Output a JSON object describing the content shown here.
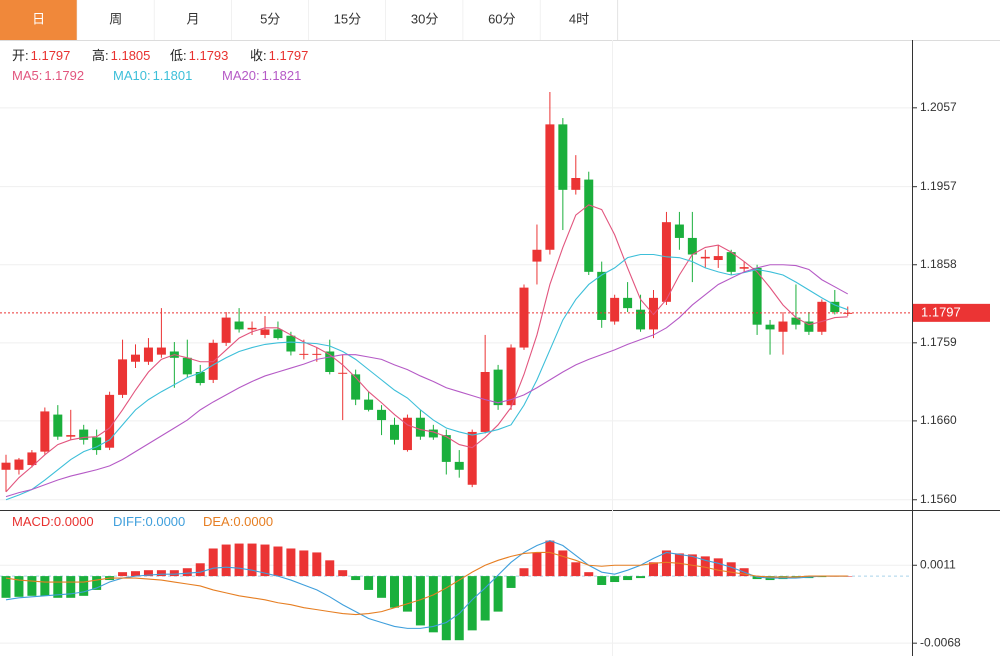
{
  "tabs": {
    "items": [
      "日",
      "周",
      "月",
      "5分",
      "15分",
      "30分",
      "60分",
      "4时"
    ],
    "active": 0
  },
  "chart_data": [
    {
      "type": "candlestick",
      "ohlc_legend": [
        {
          "label": "开:",
          "value": "1.1797"
        },
        {
          "label": "高:",
          "value": "1.1805"
        },
        {
          "label": "低:",
          "value": "1.1793"
        },
        {
          "label": "收:",
          "value": "1.1797"
        }
      ],
      "up_color": "#eb3434",
      "down_color": "#1aaf3c",
      "ylim": [
        1.1547,
        1.2143
      ],
      "yticks": [
        1.2057,
        1.1957,
        1.1858,
        1.1759,
        {
          "value": 1.166,
          "label": "1.1660"
        },
        {
          "value": 1.156,
          "label": "1.1560"
        }
      ],
      "last_price": 1.1797,
      "open": [
        1.1598,
        1.1598,
        1.1604,
        1.1621,
        1.1668,
        1.164,
        1.1649,
        1.1639,
        1.1626,
        1.1693,
        1.1735,
        1.1735,
        1.1744,
        1.1748,
        1.174,
        1.1722,
        1.1712,
        1.1759,
        1.1786,
        1.1776,
        1.1769,
        1.1776,
        1.1768,
        1.1744,
        1.1744,
        1.1748,
        1.172,
        1.1719,
        1.1687,
        1.1674,
        1.1655,
        1.1623,
        1.1664,
        1.1649,
        1.1642,
        1.1608,
        1.1579,
        1.1646,
        1.1725,
        1.168,
        1.1753,
        1.1862,
        1.1877,
        1.2036,
        1.1953,
        1.1966,
        1.1849,
        1.1786,
        1.1816,
        1.1801,
        1.1776,
        1.1811,
        1.1909,
        1.1892,
        1.1866,
        1.1864,
        1.1874,
        1.1853,
        1.1854,
        1.1782,
        1.1773,
        1.1791,
        1.1786,
        1.1773,
        1.1811,
        1.1797
      ],
      "high": [
        1.1617,
        1.1613,
        1.1623,
        1.1677,
        1.168,
        1.1674,
        1.1655,
        1.1649,
        1.1697,
        1.1763,
        1.1757,
        1.1765,
        1.1803,
        1.176,
        1.1763,
        1.1731,
        1.1763,
        1.1798,
        1.1803,
        1.1786,
        1.1793,
        1.1786,
        1.1773,
        1.1763,
        1.1753,
        1.1763,
        1.1744,
        1.1725,
        1.1697,
        1.168,
        1.1664,
        1.1668,
        1.1674,
        1.1655,
        1.1649,
        1.1623,
        1.1649,
        1.1769,
        1.1731,
        1.1757,
        1.1833,
        1.1909,
        1.2077,
        1.2044,
        1.1997,
        1.1976,
        1.1862,
        1.182,
        1.1836,
        1.182,
        1.1826,
        1.1925,
        1.1925,
        1.1925,
        1.1877,
        1.1883,
        1.1877,
        1.1862,
        1.1858,
        1.1788,
        1.1798,
        1.1833,
        1.1798,
        1.1814,
        1.1826,
        1.1805
      ],
      "low": [
        1.157,
        1.1592,
        1.1601,
        1.1617,
        1.1636,
        1.1636,
        1.163,
        1.1617,
        1.1623,
        1.1689,
        1.1727,
        1.1731,
        1.174,
        1.1702,
        1.1715,
        1.1705,
        1.1708,
        1.1755,
        1.1772,
        1.1769,
        1.1765,
        1.1763,
        1.1743,
        1.1738,
        1.1735,
        1.1719,
        1.1661,
        1.168,
        1.1672,
        1.1642,
        1.163,
        1.1621,
        1.1636,
        1.1636,
        1.1592,
        1.1588,
        1.1576,
        1.1644,
        1.1674,
        1.1674,
        1.175,
        1.1833,
        1.1871,
        1.1902,
        1.1947,
        1.1845,
        1.1778,
        1.1782,
        1.1798,
        1.1773,
        1.1765,
        1.1807,
        1.1877,
        1.1836,
        1.1854,
        1.1854,
        1.1845,
        1.1849,
        1.1769,
        1.1744,
        1.1744,
        1.1776,
        1.1769,
        1.1769,
        1.1795,
        1.1793
      ],
      "close": [
        1.1607,
        1.1611,
        1.162,
        1.1672,
        1.164,
        1.1642,
        1.1636,
        1.1623,
        1.1693,
        1.1738,
        1.1744,
        1.1753,
        1.1753,
        1.174,
        1.1719,
        1.1708,
        1.1759,
        1.1791,
        1.1776,
        1.1778,
        1.1776,
        1.1765,
        1.1748,
        1.1745,
        1.1745,
        1.1722,
        1.1721,
        1.1687,
        1.1674,
        1.1661,
        1.1636,
        1.1664,
        1.164,
        1.1639,
        1.1608,
        1.1598,
        1.1646,
        1.1722,
        1.168,
        1.1753,
        1.1829,
        1.1877,
        1.2036,
        1.1953,
        1.1968,
        1.1849,
        1.1788,
        1.1816,
        1.1803,
        1.1776,
        1.1816,
        1.1912,
        1.1892,
        1.1871,
        1.1868,
        1.1869,
        1.1849,
        1.1855,
        1.1782,
        1.1776,
        1.1786,
        1.1782,
        1.1773,
        1.1811,
        1.1798,
        1.1797
      ],
      "series": [
        {
          "name": "MA5:",
          "last": "1.1792",
          "color": "#e2557e",
          "values": [
            1.157,
            1.1588,
            1.1602,
            1.1617,
            1.163,
            1.1636,
            1.1639,
            1.164,
            1.1651,
            1.1674,
            1.1699,
            1.1722,
            1.1738,
            1.1744,
            1.174,
            1.1735,
            1.1735,
            1.175,
            1.1765,
            1.1773,
            1.1778,
            1.1778,
            1.1769,
            1.176,
            1.1753,
            1.1744,
            1.1731,
            1.1715,
            1.1697,
            1.1683,
            1.1668,
            1.1655,
            1.1649,
            1.1646,
            1.164,
            1.163,
            1.1626,
            1.1639,
            1.1655,
            1.1677,
            1.1719,
            1.1769,
            1.1833,
            1.188,
            1.1921,
            1.1934,
            1.1928,
            1.1896,
            1.1854,
            1.1814,
            1.1795,
            1.1814,
            1.1845,
            1.1871,
            1.188,
            1.1883,
            1.1874,
            1.1862,
            1.1849,
            1.1829,
            1.1807,
            1.1791,
            1.1782,
            1.1786,
            1.1791,
            1.1792
          ]
        },
        {
          "name": "MA10:",
          "last": "1.1801",
          "color": "#3dbfd9",
          "values": [
            1.156,
            1.1566,
            1.1573,
            1.1585,
            1.1598,
            1.1611,
            1.1621,
            1.1627,
            1.1636,
            1.1655,
            1.1674,
            1.1687,
            1.1697,
            1.1706,
            1.1715,
            1.1721,
            1.1731,
            1.174,
            1.1748,
            1.1753,
            1.1757,
            1.1759,
            1.176,
            1.1759,
            1.1758,
            1.1755,
            1.1748,
            1.1738,
            1.1725,
            1.1712,
            1.1699,
            1.1689,
            1.1674,
            1.1661,
            1.1651,
            1.1646,
            1.1642,
            1.1645,
            1.1649,
            1.1655,
            1.168,
            1.1712,
            1.175,
            1.1788,
            1.1814,
            1.1833,
            1.1845,
            1.1854,
            1.1867,
            1.1871,
            1.1871,
            1.1868,
            1.1867,
            1.1862,
            1.1854,
            1.1849,
            1.1845,
            1.1848,
            1.1852,
            1.1849,
            1.1845,
            1.1836,
            1.1826,
            1.1816,
            1.1807,
            1.1801
          ]
        },
        {
          "name": "MA20:",
          "last": "1.1821",
          "color": "#b55ac6",
          "values": [
            1.1564,
            1.1569,
            1.1573,
            1.1579,
            1.1585,
            1.159,
            1.1594,
            1.1598,
            1.1603,
            1.1611,
            1.1621,
            1.1631,
            1.1641,
            1.1651,
            1.1661,
            1.1674,
            1.1684,
            1.1693,
            1.1702,
            1.171,
            1.1717,
            1.1722,
            1.1727,
            1.1732,
            1.1738,
            1.1741,
            1.1744,
            1.1744,
            1.1741,
            1.1738,
            1.1731,
            1.1725,
            1.1717,
            1.171,
            1.1702,
            1.1697,
            1.1692,
            1.1687,
            1.1683,
            1.1687,
            1.1693,
            1.1702,
            1.1712,
            1.1722,
            1.1731,
            1.1738,
            1.1744,
            1.175,
            1.1757,
            1.1763,
            1.1769,
            1.1778,
            1.1791,
            1.1807,
            1.182,
            1.1833,
            1.1841,
            1.1849,
            1.1854,
            1.1858,
            1.1858,
            1.1857,
            1.1852,
            1.1839,
            1.183,
            1.1821
          ]
        }
      ]
    },
    {
      "type": "macd",
      "ylim": [
        -0.0081,
        0.0065
      ],
      "yticks": [
        0.0011,
        -0.0068
      ],
      "histogram": {
        "name": "MACD:",
        "last": "0.0000",
        "color": "#e8312f",
        "up_color": "#eb3434",
        "down_color": "#1aaf3c",
        "values": [
          -0.0022,
          -0.0021,
          -0.002,
          -0.002,
          -0.0022,
          -0.0022,
          -0.002,
          -0.0014,
          -0.0004,
          0.0004,
          0.0005,
          0.0006,
          0.0006,
          0.0006,
          0.0008,
          0.0013,
          0.0028,
          0.0032,
          0.0033,
          0.0033,
          0.0032,
          0.003,
          0.0028,
          0.0026,
          0.0024,
          0.0016,
          0.0006,
          -0.0004,
          -0.0014,
          -0.0022,
          -0.0032,
          -0.0036,
          -0.005,
          -0.0057,
          -0.0065,
          -0.0065,
          -0.0055,
          -0.0045,
          -0.0036,
          -0.0012,
          0.0008,
          0.0024,
          0.0036,
          0.0026,
          0.0014,
          0.0004,
          -0.0009,
          -0.0006,
          -0.0004,
          -0.0002,
          0.0014,
          0.0026,
          0.0023,
          0.0022,
          0.002,
          0.0018,
          0.0014,
          0.0008,
          -0.0003,
          -0.0004,
          -0.0003,
          -0.0002,
          -0.0002,
          -0.0001,
          0,
          0
        ]
      },
      "series": [
        {
          "name": "DIFF:",
          "last": "0.0000",
          "color": "#3f9fdc",
          "values": [
            -0.0024,
            -0.0022,
            -0.0021,
            -0.002,
            -0.0019,
            -0.0018,
            -0.0016,
            -0.0012,
            -0.0006,
            -0.0002,
            0,
            0.0001,
            0.0002,
            0.0002,
            0.0003,
            0.0004,
            0.0008,
            0.0009,
            0.0008,
            0.0006,
            0.0003,
            0,
            -0.0004,
            -0.0009,
            -0.0014,
            -0.0021,
            -0.0029,
            -0.0036,
            -0.0043,
            -0.0047,
            -0.0051,
            -0.0053,
            -0.0053,
            -0.0051,
            -0.0047,
            -0.0038,
            -0.0024,
            -0.0012,
            0.0001,
            0.0014,
            0.0024,
            0.0031,
            0.0036,
            0.0031,
            0.0021,
            0.0011,
            0.0004,
            0.0002,
            0.0006,
            0.0011,
            0.0018,
            0.0024,
            0.0022,
            0.002,
            0.0016,
            0.0013,
            0.0009,
            0.0004,
            -0.0001,
            -0.0002,
            -0.0002,
            -0.0002,
            -0.0001,
            0,
            0,
            0
          ]
        },
        {
          "name": "DEA:",
          "last": "0.0000",
          "color": "#e67e22",
          "values": [
            -0.0002,
            -0.0004,
            -0.0005,
            -0.0006,
            -0.0006,
            -0.0006,
            -0.0006,
            -0.0004,
            -0.0002,
            -0.0002,
            -0.0002,
            -0.0003,
            -0.0004,
            -0.0006,
            -0.0008,
            -0.001,
            -0.0014,
            -0.0017,
            -0.002,
            -0.0022,
            -0.0024,
            -0.0027,
            -0.0029,
            -0.0032,
            -0.0034,
            -0.0036,
            -0.0038,
            -0.0039,
            -0.0038,
            -0.0036,
            -0.0032,
            -0.0028,
            -0.0024,
            -0.0019,
            -0.0012,
            -0.0004,
            0.0004,
            0.0011,
            0.0016,
            0.002,
            0.0023,
            0.0024,
            0.0024,
            0.002,
            0.0016,
            0.0011,
            0.001,
            0.0011,
            0.0011,
            0.0011,
            0.0013,
            0.0014,
            0.0013,
            0.0011,
            0.0009,
            0.0006,
            0.0004,
            0.0002,
            0,
            -0.0001,
            -0.0001,
            -0.0001,
            0,
            0,
            0,
            0
          ]
        }
      ]
    }
  ]
}
